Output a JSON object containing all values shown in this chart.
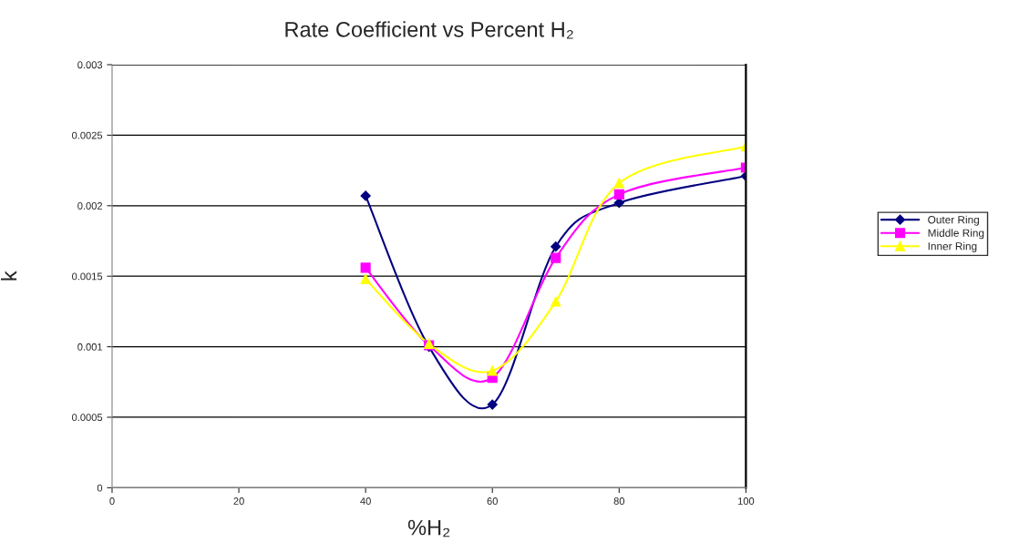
{
  "chart_data": {
    "type": "line",
    "title": "Rate Coefficient vs Percent H₂",
    "xlabel": "%H₂",
    "ylabel": "k",
    "x": [
      40,
      50,
      60,
      70,
      80,
      100
    ],
    "series": [
      {
        "name": "Outer Ring",
        "color": "#000080",
        "marker": "diamond",
        "values": [
          0.00207,
          0.001,
          0.00059,
          0.00171,
          0.00202,
          0.00221
        ]
      },
      {
        "name": "Middle Ring",
        "color": "#ff00ff",
        "marker": "square",
        "values": [
          0.00156,
          0.00101,
          0.00078,
          0.00163,
          0.00208,
          0.00227
        ]
      },
      {
        "name": "Inner Ring",
        "color": "#ffff00",
        "marker": "triangle",
        "values": [
          0.00148,
          0.00102,
          0.00083,
          0.00132,
          0.00216,
          0.00242
        ]
      }
    ],
    "xlim": [
      0,
      100
    ],
    "xticks": [
      0,
      20,
      40,
      60,
      80,
      100
    ],
    "ylim": [
      0,
      0.003
    ],
    "yticks": [
      0,
      0.0005,
      0.001,
      0.0015,
      0.002,
      0.0025,
      0.003
    ],
    "grid": "y",
    "legend": "right",
    "line_style": "solid"
  }
}
